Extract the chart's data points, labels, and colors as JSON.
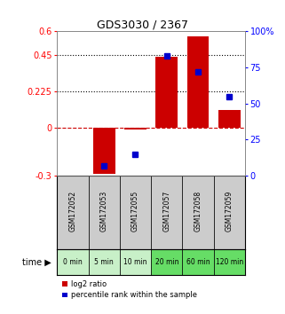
{
  "title": "GDS3030 / 2367",
  "samples": [
    "GSM172052",
    "GSM172053",
    "GSM172055",
    "GSM172057",
    "GSM172058",
    "GSM172059"
  ],
  "time_labels": [
    "0 min",
    "5 min",
    "10 min",
    "20 min",
    "60 min",
    "120 min"
  ],
  "log2_ratio": [
    0.0,
    -0.29,
    -0.01,
    0.44,
    0.57,
    0.11
  ],
  "percentile_rank": [
    null,
    7,
    15,
    83,
    72,
    55
  ],
  "ylim_left": [
    -0.3,
    0.6
  ],
  "ylim_right": [
    0,
    100
  ],
  "yticks_left": [
    -0.3,
    0,
    0.225,
    0.45,
    0.6
  ],
  "ytick_labels_left": [
    "-0.3",
    "0",
    "0.225",
    "0.45",
    "0.6"
  ],
  "yticks_right": [
    0,
    25,
    50,
    75,
    100
  ],
  "ytick_labels_right": [
    "0",
    "25",
    "50",
    "75",
    "100%"
  ],
  "hlines": [
    0.225,
    0.45
  ],
  "bar_color": "#cc0000",
  "dot_color": "#0000cc",
  "background_color": "#ffffff",
  "zero_line_color": "#cc0000",
  "zero_line_style": "--",
  "hline_style": ":",
  "hline_color": "black",
  "time_row_colors": [
    "#c8f0c8",
    "#c8f0c8",
    "#c8f0c8",
    "#66dd66",
    "#66dd66",
    "#66dd66"
  ],
  "sample_row_color": "#cccccc",
  "bar_width": 0.7
}
